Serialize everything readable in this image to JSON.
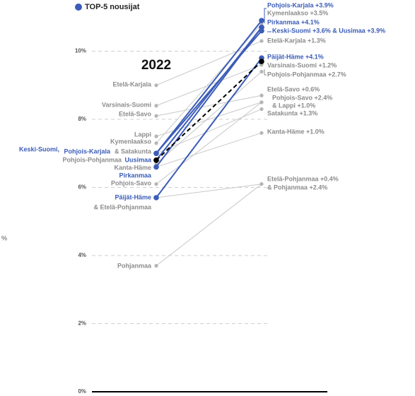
{
  "chart_data": {
    "type": "slope",
    "categories": [
      "2022",
      null
    ],
    "y_axis_label": "%",
    "legend": {
      "label": "TOP-5 nousijat",
      "color": "#3b5cb8"
    },
    "ylim": [
      0,
      11.4
    ],
    "yticks": [
      {
        "value": 0,
        "label": "0%"
      },
      {
        "value": 2,
        "label": "2%"
      },
      {
        "value": 4,
        "label": "4%"
      },
      {
        "value": 6,
        "label": "6%"
      },
      {
        "value": 8,
        "label": "8%"
      },
      {
        "value": 10,
        "label": "10%"
      }
    ],
    "grid": true,
    "series": [
      {
        "color": "#c8c8c8",
        "values": [
          9.0,
          10.3
        ]
      },
      {
        "color": "#c8c8c8",
        "values": [
          8.4,
          9.6
        ]
      },
      {
        "color": "#c8c8c8",
        "values": [
          8.1,
          8.7
        ]
      },
      {
        "color": "#c8c8c8",
        "values": [
          7.5,
          8.5
        ]
      },
      {
        "color": "#c8c8c8",
        "values": [
          7.3,
          10.8
        ]
      },
      {
        "color": "#3b5cb8",
        "values": [
          7.0,
          10.6
        ]
      },
      {
        "color": "#3b5cb8",
        "values": [
          7.0,
          10.9
        ]
      },
      {
        "color": "#c8c8c8",
        "values": [
          7.0,
          8.3
        ]
      },
      {
        "color": "#3b5cb8",
        "values": [
          6.8,
          10.7
        ]
      },
      {
        "color": "#c8c8c8",
        "values": [
          6.7,
          9.4
        ]
      },
      {
        "color": "#c8c8c8",
        "values": [
          6.6,
          7.6
        ]
      },
      {
        "color": "#3b5cb8",
        "values": [
          6.6,
          10.7
        ]
      },
      {
        "color": "#c8c8c8",
        "values": [
          6.1,
          8.5
        ]
      },
      {
        "color": "#3b5cb8",
        "values": [
          5.7,
          9.8
        ]
      },
      {
        "color": "#c8c8c8",
        "values": [
          5.7,
          6.1
        ]
      },
      {
        "color": "#c8c8c8",
        "values": [
          3.7,
          6.1
        ]
      },
      {
        "color": "#000000",
        "dashed": true,
        "values": [
          6.8,
          9.7
        ]
      }
    ],
    "left_labels": [
      {
        "text": "Etelä-Karjala",
        "color": "#8c8c8c"
      },
      {
        "text": "Varsinais-Suomi",
        "color": "#8c8c8c"
      },
      {
        "text": "Etelä-Savo",
        "color": "#8c8c8c"
      },
      {
        "text": "Lappi",
        "color": "#8c8c8c"
      },
      {
        "text": "Kymenlaakso",
        "color": "#8c8c8c"
      },
      {
        "text": "Keski-Suomi,",
        "color": "#3b5cb8"
      },
      {
        "text": "Pohjois-Karjala",
        "color": "#3b5cb8"
      },
      {
        "text": "& Satakunta",
        "color": "#8c8c8c"
      },
      {
        "text": "Pohjois-Pohjanmaa",
        "color": "#8c8c8c"
      },
      {
        "text": "Uusimaa",
        "color": "#3b5cb8"
      },
      {
        "text": "Kanta-Häme",
        "color": "#8c8c8c"
      },
      {
        "text": "Pirkanmaa",
        "color": "#3b5cb8"
      },
      {
        "text": "Pohjois-Savo",
        "color": "#8c8c8c"
      },
      {
        "text": "Päijät-Häme",
        "color": "#3b5cb8"
      },
      {
        "text": "& Etelä-Pohjanmaa",
        "color": "#8c8c8c"
      },
      {
        "text": "Pohjanmaa",
        "color": "#8c8c8c"
      }
    ],
    "right_labels": [
      {
        "text": "Pohjois-Karjala +3.9%",
        "color": "#3b5cb8"
      },
      {
        "text": "Kymenlaakso +3.5%",
        "color": "#8c8c8c"
      },
      {
        "text": "Pirkanmaa +4.1%",
        "color": "#3b5cb8"
      },
      {
        "text": "Keski-Suomi +3.6% & Uusimaa +3.9%",
        "color": "#3b5cb8"
      },
      {
        "text": "Etelä-Karjala +1.3%",
        "color": "#8c8c8c"
      },
      {
        "text": "Päijät-Häme +4.1%",
        "color": "#3b5cb8"
      },
      {
        "text": "Varsinais-Suomi +1.2%",
        "color": "#8c8c8c"
      },
      {
        "text": "Pohjois-Pohjanmaa +2.7%",
        "color": "#8c8c8c"
      },
      {
        "text": "Etelä-Savo +0.6%",
        "color": "#8c8c8c"
      },
      {
        "text": "Pohjois-Savo +2.4%",
        "color": "#8c8c8c"
      },
      {
        "text": "& Lappi +1.0%",
        "color": "#8c8c8c"
      },
      {
        "text": "Satakunta +1.3%",
        "color": "#8c8c8c"
      },
      {
        "text": "Kanta-Häme +1.0%",
        "color": "#8c8c8c"
      },
      {
        "text": "Etelä-Pohjanmaa +0.4%",
        "color": "#8c8c8c"
      },
      {
        "text": "& Pohjanmaa +2.4%",
        "color": "#8c8c8c"
      }
    ]
  }
}
